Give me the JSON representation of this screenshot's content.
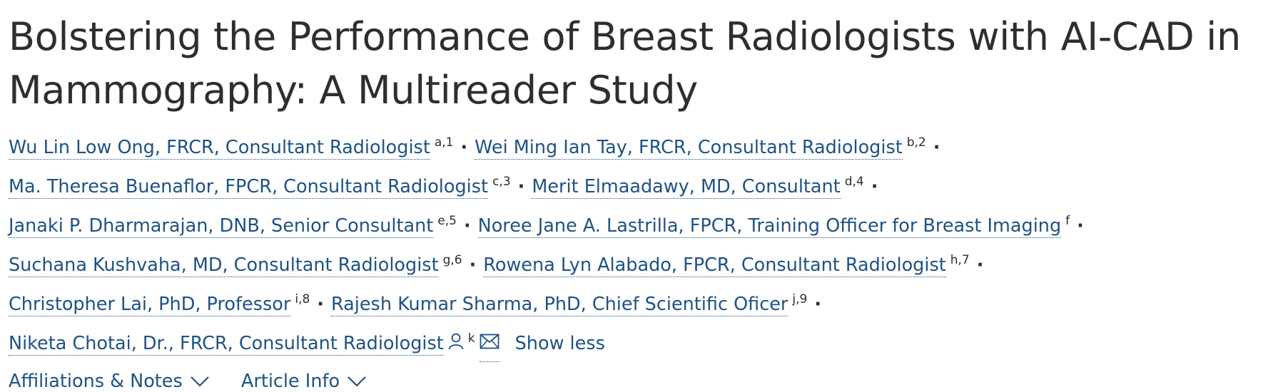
{
  "title": "Bolstering the Performance of Breast Radiologists with AI-CAD in Mammography: A Multireader Study",
  "authors": [
    {
      "name": "Wu Lin Low Ong, FRCR, Consultant Radiologist",
      "aff": "a,1"
    },
    {
      "name": "Wei Ming Ian Tay, FRCR, Consultant Radiologist",
      "aff": "b,2"
    },
    {
      "name": "Ma. Theresa Buenaflor, FPCR, Consultant Radiologist",
      "aff": "c,3"
    },
    {
      "name": "Merit Elmaadawy, MD, Consultant",
      "aff": "d,4"
    },
    {
      "name": "Janaki P. Dharmarajan, DNB, Senior Consultant",
      "aff": "e,5"
    },
    {
      "name": "Noree Jane A. Lastrilla, FPCR, Training Officer for Breast Imaging",
      "aff": "f"
    },
    {
      "name": "Suchana Kushvaha, MD, Consultant Radiologist",
      "aff": "g,6"
    },
    {
      "name": "Rowena Lyn Alabado, FPCR, Consultant Radiologist",
      "aff": "h,7"
    },
    {
      "name": "Christopher Lai, PhD, Professor",
      "aff": "i,8"
    },
    {
      "name": "Rajesh Kumar Sharma, PhD, Chief Scientific Oficer",
      "aff": "j,9"
    },
    {
      "name": "Niketa Chotai, Dr., FRCR, Consultant Radiologist",
      "aff": "k"
    }
  ],
  "icons": {
    "person": "person-icon",
    "mail": "mail-icon",
    "chevron": "chevron-down-icon"
  },
  "show_less": "Show less",
  "tabs": {
    "affiliations": "Affiliations & Notes",
    "article_info": "Article Info"
  },
  "colors": {
    "link": "#1f5286",
    "text": "#2e2e2e"
  }
}
